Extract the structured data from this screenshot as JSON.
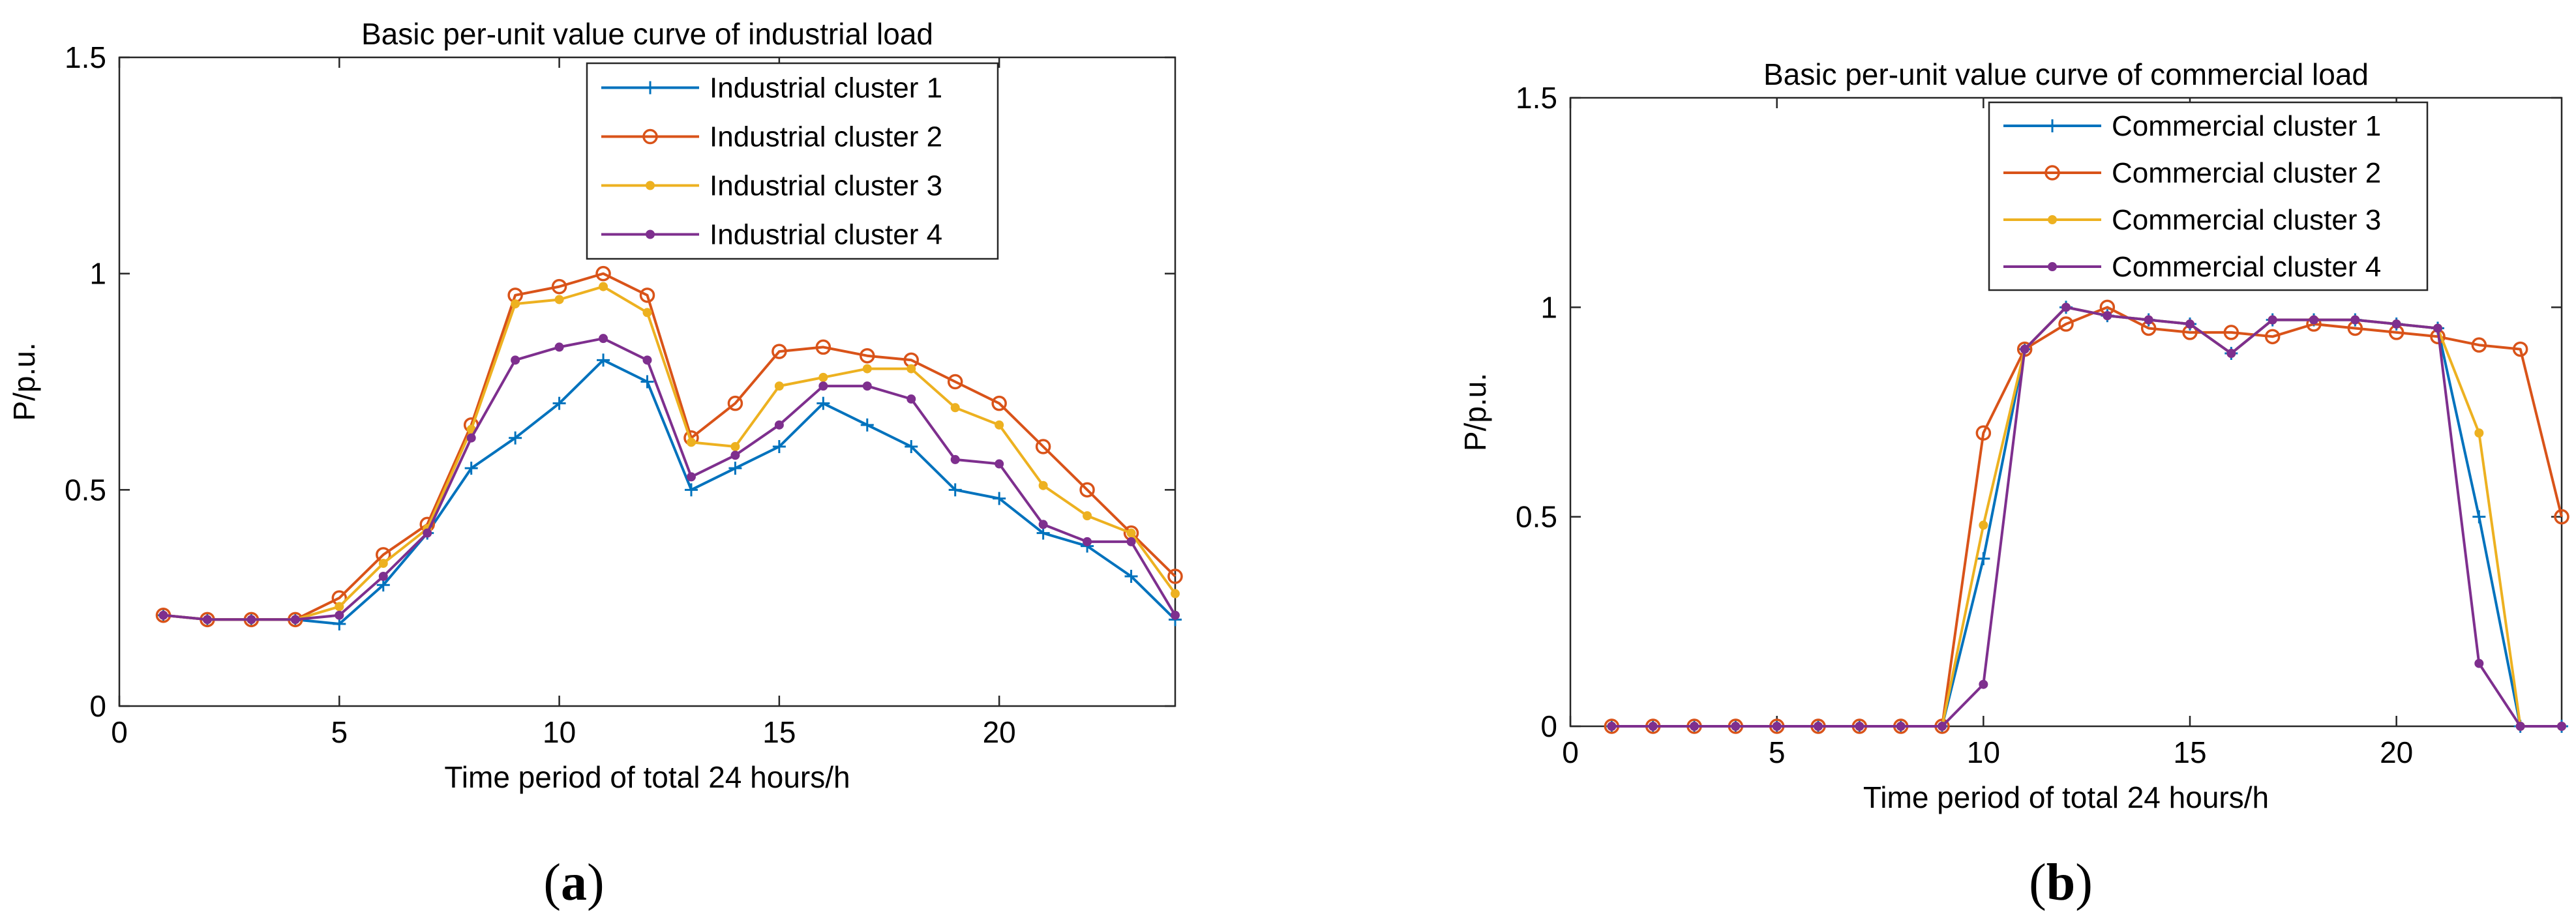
{
  "chart_data": [
    {
      "type": "line",
      "title": "Basic per-unit value curve of industrial load",
      "xlabel": "Time period of total 24 hours/h",
      "ylabel": "P/p.u.",
      "xlim": [
        0,
        24
      ],
      "ylim": [
        0,
        1.5
      ],
      "xticks": [
        0,
        5,
        10,
        15,
        20
      ],
      "xtick_labels": [
        "0",
        "5",
        "10",
        "15",
        "20"
      ],
      "yticks": [
        0,
        0.5,
        1,
        1.5
      ],
      "ytick_labels": [
        "0",
        "0.5",
        "1",
        "1.5"
      ],
      "legend_position": "top-right",
      "panel_label": {
        "open": "(",
        "letter": "a",
        "close": ")"
      },
      "x": [
        1,
        2,
        3,
        4,
        5,
        6,
        7,
        8,
        9,
        10,
        11,
        12,
        13,
        14,
        15,
        16,
        17,
        18,
        19,
        20,
        21,
        22,
        23,
        24
      ],
      "series": [
        {
          "name": "Industrial cluster 1",
          "color": "#0072BD",
          "marker": "plus",
          "values": [
            0.21,
            0.2,
            0.2,
            0.2,
            0.19,
            0.28,
            0.4,
            0.55,
            0.62,
            0.7,
            0.8,
            0.75,
            0.5,
            0.55,
            0.6,
            0.7,
            0.65,
            0.6,
            0.5,
            0.48,
            0.4,
            0.37,
            0.3,
            0.2
          ]
        },
        {
          "name": "Industrial cluster 2",
          "color": "#D95319",
          "marker": "circle",
          "values": [
            0.21,
            0.2,
            0.2,
            0.2,
            0.25,
            0.35,
            0.42,
            0.65,
            0.95,
            0.97,
            1.0,
            0.95,
            0.62,
            0.7,
            0.82,
            0.83,
            0.81,
            0.8,
            0.75,
            0.7,
            0.6,
            0.5,
            0.4,
            0.3
          ]
        },
        {
          "name": "Industrial cluster 3",
          "color": "#EDB120",
          "marker": "dot",
          "values": [
            0.21,
            0.2,
            0.2,
            0.2,
            0.23,
            0.33,
            0.41,
            0.64,
            0.93,
            0.94,
            0.97,
            0.91,
            0.61,
            0.6,
            0.74,
            0.76,
            0.78,
            0.78,
            0.69,
            0.65,
            0.51,
            0.44,
            0.4,
            0.26
          ]
        },
        {
          "name": "Industrial cluster 4",
          "color": "#7E2F8E",
          "marker": "dot",
          "values": [
            0.21,
            0.2,
            0.2,
            0.2,
            0.21,
            0.3,
            0.4,
            0.62,
            0.8,
            0.83,
            0.85,
            0.8,
            0.53,
            0.58,
            0.65,
            0.74,
            0.74,
            0.71,
            0.57,
            0.56,
            0.42,
            0.38,
            0.38,
            0.21
          ]
        }
      ]
    },
    {
      "type": "line",
      "title": "Basic per-unit value curve of commercial load",
      "xlabel": "Time period of total 24 hours/h",
      "ylabel": "P/p.u.",
      "xlim": [
        0,
        24
      ],
      "ylim": [
        0,
        1.5
      ],
      "xticks": [
        0,
        5,
        10,
        15,
        20
      ],
      "xtick_labels": [
        "0",
        "5",
        "10",
        "15",
        "20"
      ],
      "yticks": [
        0,
        0.5,
        1,
        1.5
      ],
      "ytick_labels": [
        "0",
        "0.5",
        "1",
        "1.5"
      ],
      "legend_position": "top-right",
      "panel_label": {
        "open": "(",
        "letter": "b",
        "close": ")"
      },
      "x": [
        1,
        2,
        3,
        4,
        5,
        6,
        7,
        8,
        9,
        10,
        11,
        12,
        13,
        14,
        15,
        16,
        17,
        18,
        19,
        20,
        21,
        22,
        23,
        24
      ],
      "series": [
        {
          "name": "Commercial cluster 1",
          "color": "#0072BD",
          "marker": "plus",
          "values": [
            0,
            0,
            0,
            0,
            0,
            0,
            0,
            0,
            0,
            0.4,
            0.9,
            1.0,
            0.98,
            0.97,
            0.96,
            0.89,
            0.97,
            0.97,
            0.97,
            0.96,
            0.95,
            0.5,
            0,
            0
          ]
        },
        {
          "name": "Commercial cluster 2",
          "color": "#D95319",
          "marker": "circle",
          "values": [
            0,
            0,
            0,
            0,
            0,
            0,
            0,
            0,
            0,
            0.7,
            0.9,
            0.96,
            1.0,
            0.95,
            0.94,
            0.94,
            0.93,
            0.96,
            0.95,
            0.94,
            0.93,
            0.91,
            0.9,
            0.5
          ]
        },
        {
          "name": "Commercial cluster 3",
          "color": "#EDB120",
          "marker": "dot",
          "values": [
            0,
            0,
            0,
            0,
            0,
            0,
            0,
            0,
            0,
            0.48,
            0.9,
            1.0,
            0.98,
            0.97,
            0.96,
            0.89,
            0.97,
            0.97,
            0.97,
            0.96,
            0.95,
            0.7,
            0,
            0
          ]
        },
        {
          "name": "Commercial cluster 4",
          "color": "#7E2F8E",
          "marker": "dot",
          "values": [
            0,
            0,
            0,
            0,
            0,
            0,
            0,
            0,
            0,
            0.1,
            0.9,
            1.0,
            0.98,
            0.97,
            0.96,
            0.89,
            0.97,
            0.97,
            0.97,
            0.96,
            0.95,
            0.15,
            0,
            0
          ]
        }
      ]
    }
  ]
}
